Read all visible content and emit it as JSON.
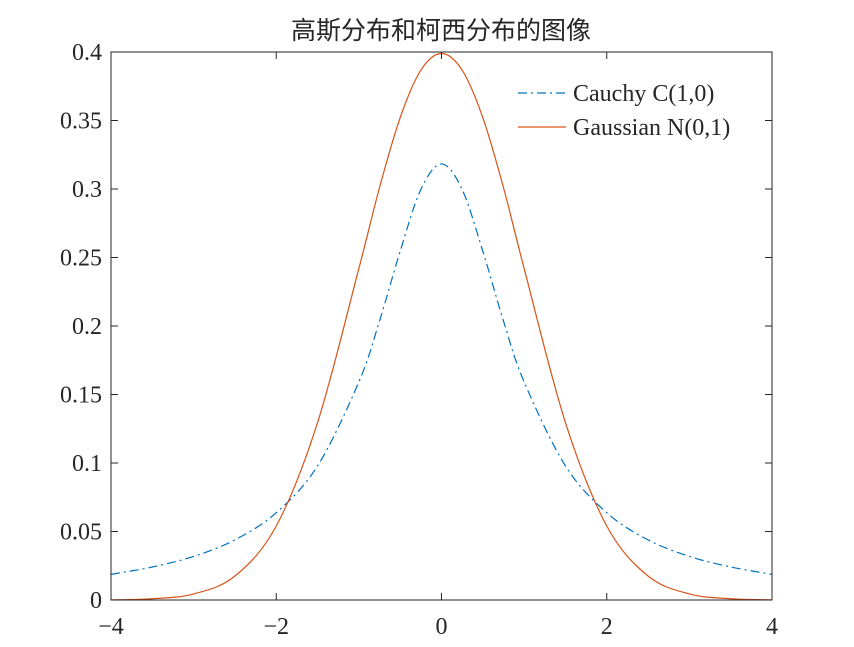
{
  "chart_data": {
    "type": "line",
    "title": "高斯分布和柯西分布的图像",
    "xlabel": "",
    "ylabel": "",
    "xlim": [
      -4,
      4
    ],
    "ylim": [
      0,
      0.4
    ],
    "x_ticks": [
      -4,
      -2,
      0,
      2,
      4
    ],
    "x_tick_labels": [
      "−4",
      "−2",
      "0",
      "2",
      "4"
    ],
    "y_ticks": [
      0,
      0.05,
      0.1,
      0.15,
      0.2,
      0.25,
      0.3,
      0.35,
      0.4
    ],
    "y_tick_labels": [
      "0",
      "0.05",
      "0.1",
      "0.15",
      "0.2",
      "0.25",
      "0.3",
      "0.35",
      "0.4"
    ],
    "grid": false,
    "box": true,
    "legend_position": "top-right",
    "series": [
      {
        "name": "Cauchy C(1,0)",
        "color": "#0072BD",
        "line_style": "dash-dot",
        "x": [
          -4,
          -3.5,
          -3,
          -2.5,
          -2,
          -1.5,
          -1,
          -0.75,
          -0.5,
          -0.25,
          0,
          0.25,
          0.5,
          0.75,
          1,
          1.5,
          2,
          2.5,
          3,
          3.5,
          4
        ],
        "y": [
          0.0187,
          0.0241,
          0.0318,
          0.0439,
          0.0637,
          0.0979,
          0.1592,
          0.2037,
          0.2546,
          0.2996,
          0.3183,
          0.2996,
          0.2546,
          0.2037,
          0.1592,
          0.0979,
          0.0637,
          0.0439,
          0.0318,
          0.0241,
          0.0187
        ]
      },
      {
        "name": "Gaussian N(0,1)",
        "color": "#D95319",
        "line_style": "solid",
        "x": [
          -4,
          -3.5,
          -3,
          -2.5,
          -2,
          -1.5,
          -1,
          -0.75,
          -0.5,
          -0.25,
          0,
          0.25,
          0.5,
          0.75,
          1,
          1.5,
          2,
          2.5,
          3,
          3.5,
          4
        ],
        "y": [
          0.0001,
          0.0009,
          0.0044,
          0.0175,
          0.054,
          0.1295,
          0.242,
          0.3011,
          0.3521,
          0.3867,
          0.3989,
          0.3867,
          0.3521,
          0.3011,
          0.242,
          0.1295,
          0.054,
          0.0175,
          0.0044,
          0.0009,
          0.0001
        ]
      }
    ]
  }
}
